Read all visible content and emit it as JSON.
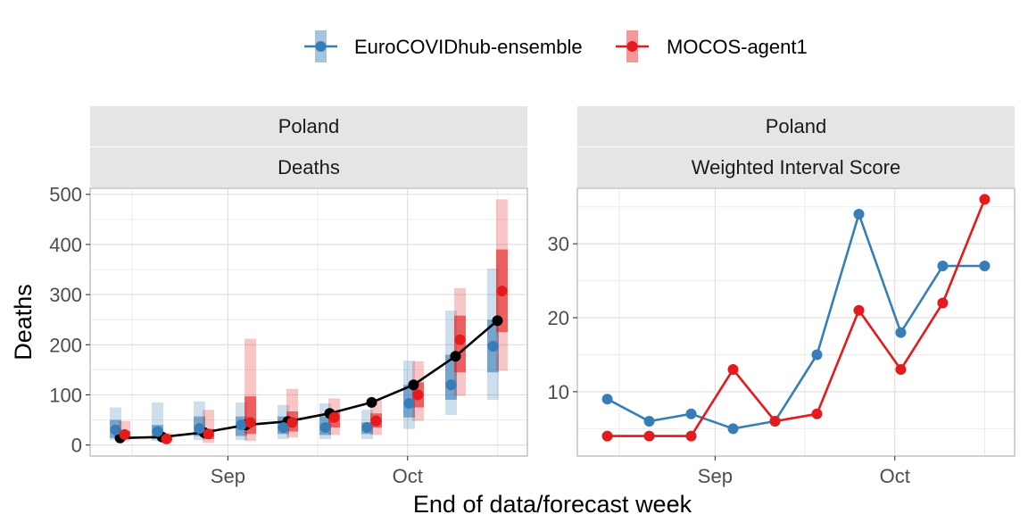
{
  "legend": {
    "items": [
      {
        "label": "EuroCOVIDhub-ensemble",
        "color": "#377EB8"
      },
      {
        "label": "MOCOS-agent1",
        "color": "#E41A1C"
      }
    ],
    "position": "top"
  },
  "x_axis": {
    "label": "End of data/forecast week",
    "tick_labels": [
      "Sep",
      "Oct"
    ]
  },
  "chart_data": [
    {
      "type": "line",
      "panel_strips": [
        "Poland",
        "Deaths"
      ],
      "ylabel": "Deaths",
      "xlabel": "End of data/forecast week",
      "x_ticks": [
        "Sep",
        "Oct"
      ],
      "ylim": [
        -22,
        512
      ],
      "y_ticks": [
        0,
        100,
        200,
        300,
        400,
        500
      ],
      "grid": true,
      "dates": [
        "2021-08-14",
        "2021-08-21",
        "2021-08-28",
        "2021-09-04",
        "2021-09-11",
        "2021-09-18",
        "2021-09-25",
        "2021-10-02",
        "2021-10-09",
        "2021-10-16"
      ],
      "observed": {
        "name": "",
        "color": "#000000",
        "values": [
          14,
          16,
          25,
          40,
          47,
          63,
          85,
          120,
          177,
          248
        ]
      },
      "series": [
        {
          "name": "EuroCOVIDhub-ensemble",
          "color": "#377EB8",
          "median": [
            30,
            27,
            33,
            40,
            35,
            35,
            35,
            83,
            120,
            197
          ],
          "interval_50": [
            [
              14,
              50
            ],
            [
              12,
              40
            ],
            [
              18,
              57
            ],
            [
              18,
              57
            ],
            [
              22,
              57
            ],
            [
              20,
              57
            ],
            [
              22,
              45
            ],
            [
              55,
              120
            ],
            [
              90,
              180
            ],
            [
              145,
              250
            ]
          ],
          "interval_90": [
            [
              10,
              75
            ],
            [
              8,
              85
            ],
            [
              10,
              87
            ],
            [
              10,
              85
            ],
            [
              12,
              80
            ],
            [
              12,
              83
            ],
            [
              12,
              70
            ],
            [
              32,
              168
            ],
            [
              60,
              268
            ],
            [
              90,
              352
            ]
          ]
        },
        {
          "name": "MOCOS-agent1",
          "color": "#E41A1C",
          "median": [
            21,
            12,
            22,
            45,
            45,
            55,
            48,
            100,
            210,
            307
          ],
          "interval_50": [
            [
              14,
              28
            ],
            [
              8,
              18
            ],
            [
              12,
              32
            ],
            [
              22,
              97
            ],
            [
              27,
              67
            ],
            [
              35,
              65
            ],
            [
              35,
              63
            ],
            [
              75,
              125
            ],
            [
              145,
              258
            ],
            [
              225,
              390
            ]
          ],
          "interval_90": [
            [
              8,
              48
            ],
            [
              4,
              24
            ],
            [
              4,
              70
            ],
            [
              8,
              212
            ],
            [
              15,
              112
            ],
            [
              20,
              93
            ],
            [
              20,
              90
            ],
            [
              48,
              167
            ],
            [
              98,
              313
            ],
            [
              148,
              490
            ]
          ]
        }
      ]
    },
    {
      "type": "line",
      "panel_strips": [
        "Poland",
        "Weighted Interval Score"
      ],
      "ylabel": "",
      "xlabel": "End of data/forecast week",
      "x_ticks": [
        "Sep",
        "Oct"
      ],
      "ylim": [
        1.3,
        37.5
      ],
      "y_ticks": [
        10,
        20,
        30
      ],
      "grid": true,
      "dates": [
        "2021-08-14",
        "2021-08-21",
        "2021-08-28",
        "2021-09-04",
        "2021-09-11",
        "2021-09-18",
        "2021-09-25",
        "2021-10-02",
        "2021-10-09",
        "2021-10-16"
      ],
      "series": [
        {
          "name": "EuroCOVIDhub-ensemble",
          "color": "#377EB8",
          "values": [
            9,
            6,
            7,
            5,
            6,
            15,
            34,
            18,
            27,
            27
          ]
        },
        {
          "name": "MOCOS-agent1",
          "color": "#E41A1C",
          "values": [
            4,
            4,
            4,
            13,
            6,
            7,
            21,
            13,
            22,
            36
          ]
        }
      ]
    }
  ]
}
